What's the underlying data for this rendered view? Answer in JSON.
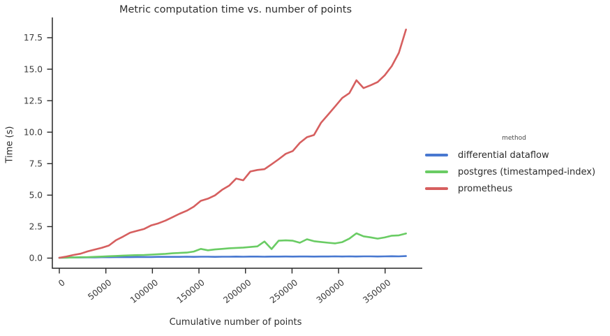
{
  "chart_data": {
    "type": "line",
    "title": "Metric computation time vs. number of points",
    "xlabel": "Cumulative number of points",
    "ylabel": "Time (s)",
    "x_tick_labels": [
      "0",
      "50000",
      "100000",
      "150000",
      "200000",
      "250000",
      "300000",
      "350000"
    ],
    "y_tick_labels": [
      "0.0",
      "2.5",
      "5.0",
      "7.5",
      "10.0",
      "12.5",
      "15.0",
      "17.5"
    ],
    "x_tick_rotation_deg": -38,
    "xlim": [
      -7500,
      390000
    ],
    "ylim": [
      -0.8,
      19.2
    ],
    "grid": false,
    "legend": {
      "title": "method",
      "position": "right-of-plot"
    },
    "axis_color": "#262626",
    "tick_label_color": "#3a3a3a",
    "x": [
      0,
      7600,
      15200,
      22800,
      30400,
      38000,
      45600,
      53200,
      60800,
      68400,
      76000,
      83600,
      91200,
      98800,
      106400,
      114000,
      121600,
      129200,
      136800,
      144400,
      152000,
      159600,
      167200,
      174800,
      182400,
      190000,
      197600,
      205200,
      212800,
      220400,
      228000,
      235600,
      243200,
      250800,
      258400,
      266000,
      273600,
      281200,
      288800,
      296400,
      304000,
      311600,
      319200,
      326800,
      334400,
      342000,
      349600,
      357200,
      364800,
      372400
    ],
    "series": [
      {
        "name": "differential dataflow",
        "color": "#4878d0",
        "values": [
          0.03,
          0.04,
          0.05,
          0.05,
          0.06,
          0.06,
          0.07,
          0.07,
          0.08,
          0.08,
          0.08,
          0.09,
          0.09,
          0.09,
          0.1,
          0.1,
          0.1,
          0.1,
          0.11,
          0.1,
          0.11,
          0.11,
          0.1,
          0.11,
          0.11,
          0.12,
          0.11,
          0.12,
          0.12,
          0.11,
          0.12,
          0.12,
          0.13,
          0.12,
          0.13,
          0.13,
          0.12,
          0.13,
          0.13,
          0.14,
          0.13,
          0.14,
          0.13,
          0.14,
          0.14,
          0.13,
          0.14,
          0.15,
          0.14,
          0.16
        ]
      },
      {
        "name": "postgres (timestamped-index)",
        "color": "#6acc64",
        "values": [
          0.03,
          0.04,
          0.05,
          0.07,
          0.08,
          0.1,
          0.12,
          0.15,
          0.17,
          0.2,
          0.22,
          0.24,
          0.25,
          0.28,
          0.31,
          0.34,
          0.38,
          0.41,
          0.44,
          0.52,
          0.73,
          0.62,
          0.69,
          0.73,
          0.78,
          0.81,
          0.84,
          0.88,
          0.93,
          1.32,
          0.72,
          1.38,
          1.41,
          1.38,
          1.22,
          1.5,
          1.34,
          1.28,
          1.22,
          1.17,
          1.27,
          1.55,
          1.97,
          1.73,
          1.65,
          1.55,
          1.64,
          1.78,
          1.81,
          1.96
        ]
      },
      {
        "name": "prometheus",
        "color": "#d65f5f",
        "values": [
          0.03,
          0.12,
          0.25,
          0.35,
          0.53,
          0.68,
          0.82,
          1.0,
          1.42,
          1.7,
          2.02,
          2.17,
          2.32,
          2.6,
          2.76,
          2.98,
          3.25,
          3.52,
          3.76,
          4.08,
          4.55,
          4.72,
          4.98,
          5.42,
          5.75,
          6.32,
          6.18,
          6.88,
          7.0,
          7.06,
          7.45,
          7.85,
          8.28,
          8.5,
          9.15,
          9.6,
          9.78,
          10.75,
          11.4,
          12.05,
          12.72,
          13.1,
          14.12,
          13.5,
          13.72,
          13.98,
          14.52,
          15.25,
          16.3,
          18.15
        ]
      }
    ]
  }
}
